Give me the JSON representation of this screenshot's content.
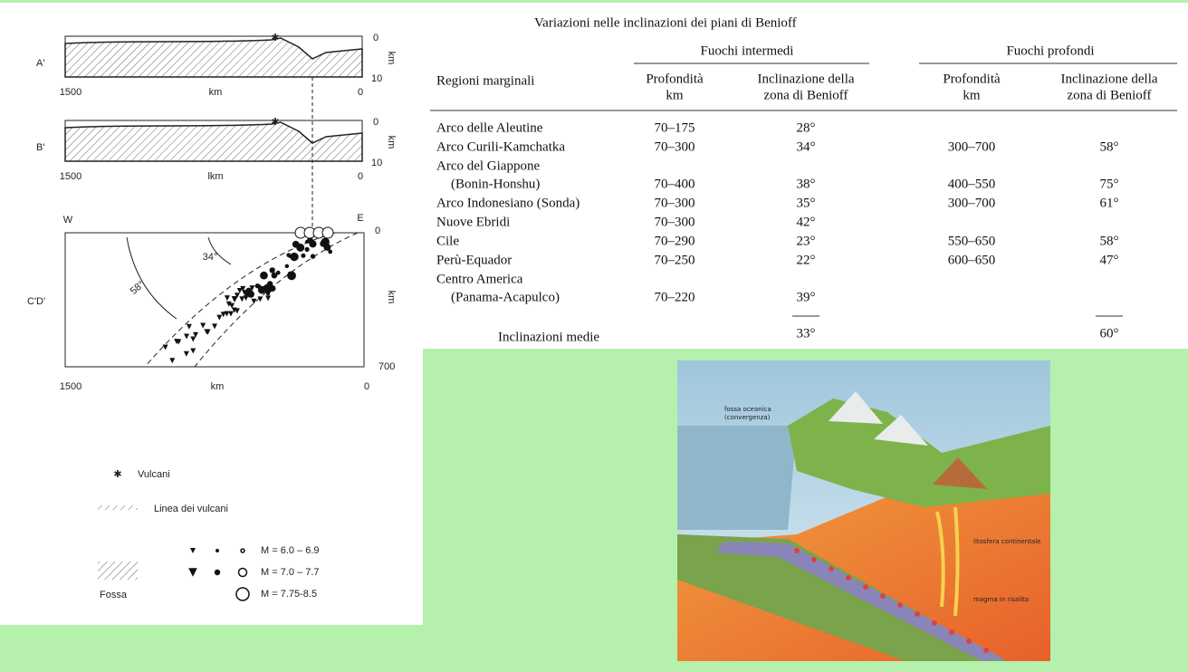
{
  "profiles": [
    {
      "label": "A'",
      "depth_top": "0",
      "depth_unit": "km",
      "depth_bottom": "10",
      "x_left": "1500",
      "x_unit": "km",
      "x_right": "0"
    },
    {
      "label": "B'",
      "depth_top": "0",
      "depth_unit": "km",
      "depth_bottom": "10",
      "x_left": "1500",
      "x_unit": "lkm",
      "x_right": "0"
    }
  ],
  "section": {
    "label": "C'D'",
    "west": "W",
    "east": "E",
    "depth_top": "0",
    "depth_unit": "km",
    "depth_bottom": "700",
    "angle_steep": "34°",
    "angle_wide": "58°",
    "x_left": "1500",
    "x_unit": "km",
    "x_right": "0"
  },
  "legend": {
    "volcanoes": "Vulcani",
    "volcano_line": "Linea dei vulcani",
    "trench": "Fossa",
    "magnitudes": [
      "M = 6.0 – 6.9",
      "M = 7.0 – 7.7",
      "M = 7.75-8.5"
    ]
  },
  "table": {
    "title": "Variazioni nelle inclinazioni dei piani di Benioff",
    "group_headers": [
      "Fuochi intermedi",
      "Fuochi profondi"
    ],
    "headers": [
      [
        "Regioni marginali"
      ],
      [
        "Profondità",
        "km"
      ],
      [
        "Inclinazione della",
        "zona di Benioff"
      ],
      [
        "Profondità",
        "km"
      ],
      [
        "Inclinazione della",
        "zona di Benioff"
      ]
    ],
    "rows": [
      {
        "region": [
          "Arco delle Aleutine"
        ],
        "int_depth": "70–175",
        "int_angle": "28°"
      },
      {
        "region": [
          "Arco Curili-Kamchatka"
        ],
        "int_depth": "70–300",
        "int_angle": "34°",
        "deep_depth": "300–700",
        "deep_angle": "58°"
      },
      {
        "region": [
          "Arco del Giappone",
          "(Bonin-Honshu)"
        ],
        "int_depth": "70–400",
        "int_angle": "38°",
        "deep_depth": "400–550",
        "deep_angle": "75°"
      },
      {
        "region": [
          "Arco Indonesiano (Sonda)"
        ],
        "int_depth": "70–300",
        "int_angle": "35°",
        "deep_depth": "300–700",
        "deep_angle": "61°"
      },
      {
        "region": [
          "Nuove Ebridi"
        ],
        "int_depth": "70–300",
        "int_angle": "42°"
      },
      {
        "region": [
          "Cile"
        ],
        "int_depth": "70–290",
        "int_angle": "23°",
        "deep_depth": "550–650",
        "deep_angle": "58°"
      },
      {
        "region": [
          "Perù-Equador"
        ],
        "int_depth": "70–250",
        "int_angle": "22°",
        "deep_depth": "600–650",
        "deep_angle": "47°"
      },
      {
        "region": [
          "Centro America",
          "(Panama-Acapulco)"
        ],
        "int_depth": "70–220",
        "int_angle": "39°"
      }
    ],
    "footer": {
      "label": "Inclinazioni medie",
      "int_angle": "33°",
      "deep_angle": "60°"
    }
  },
  "illustration": {
    "labels": [
      "fossa oceanica",
      "(convergenza)",
      "litosfera continentale",
      "magma in risalita"
    ]
  }
}
